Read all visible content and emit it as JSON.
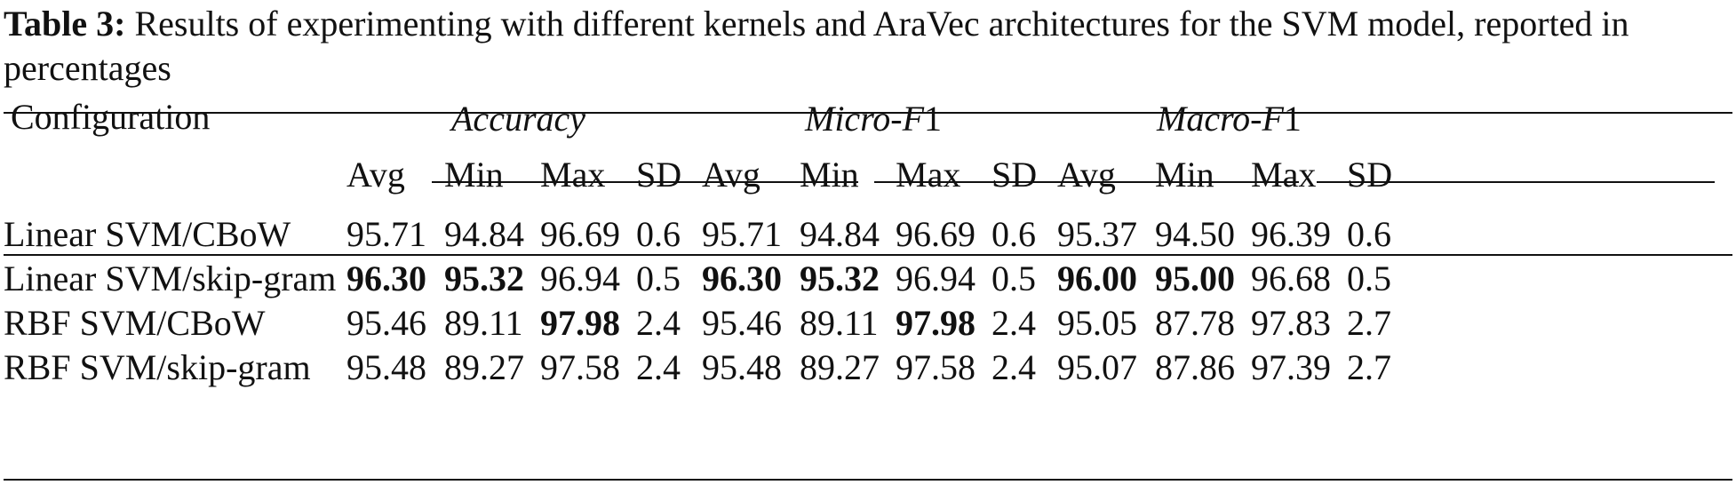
{
  "caption": {
    "label": "Table 3:",
    "text": " Results of experimenting with different kernels and AraVec architectures for the SVM model, reported in percentages"
  },
  "header": {
    "config": "Configuration",
    "groups": [
      {
        "name": "Accuracy",
        "suffix": ""
      },
      {
        "name": "Micro-F",
        "suffix": "1"
      },
      {
        "name": "Macro-F",
        "suffix": "1"
      }
    ],
    "stats": [
      "Avg",
      "Min",
      "Max",
      "SD"
    ]
  },
  "rows": [
    {
      "config": "Linear SVM/CBoW",
      "values": [
        "95.71",
        "94.84",
        "96.69",
        "0.6",
        "95.71",
        "94.84",
        "96.69",
        "0.6",
        "95.37",
        "94.50",
        "96.39",
        "0.6"
      ],
      "bold": []
    },
    {
      "config": "Linear SVM/skip-gram",
      "values": [
        "96.30",
        "95.32",
        "96.94",
        "0.5",
        "96.30",
        "95.32",
        "96.94",
        "0.5",
        "96.00",
        "95.00",
        "96.68",
        "0.5"
      ],
      "bold": [
        0,
        1,
        4,
        5,
        8,
        9
      ]
    },
    {
      "config": "RBF SVM/CBoW",
      "values": [
        "95.46",
        "89.11",
        "97.98",
        "2.4",
        "95.46",
        "89.11",
        "97.98",
        "2.4",
        "95.05",
        "87.78",
        "97.83",
        "2.7"
      ],
      "bold": [
        2,
        6
      ]
    },
    {
      "config": "RBF SVM/skip-gram",
      "values": [
        "95.48",
        "89.27",
        "97.58",
        "2.4",
        "95.48",
        "89.27",
        "97.58",
        "2.4",
        "95.07",
        "87.86",
        "97.39",
        "2.7"
      ],
      "bold": []
    }
  ]
}
